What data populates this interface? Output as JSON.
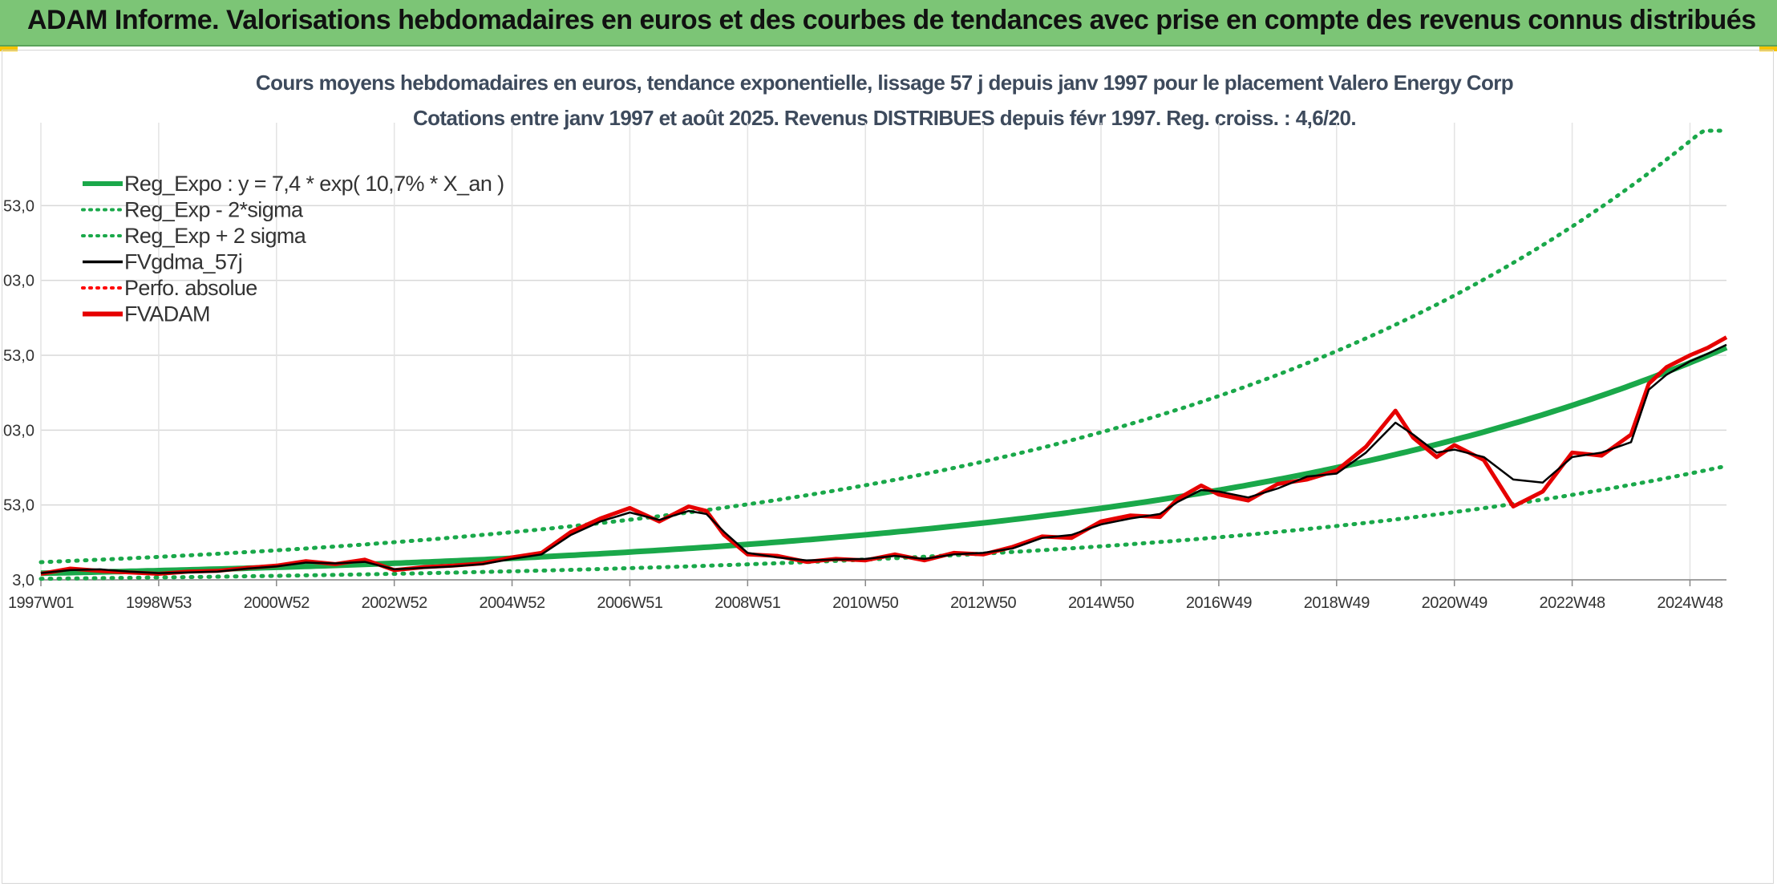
{
  "banner": {
    "title": "ADAM Informe. Valorisations hebdomadaires en euros et des courbes de tendances avec prise en compte des revenus connus distribués",
    "color": "#7cc576"
  },
  "chart_data": {
    "type": "line",
    "title": "Cours moyens hebdomadaires en euros, tendance exponentielle, lissage 57 j depuis janv 1997 pour le placement Valero Energy Corp",
    "subtitle": "Cotations entre janv 1997 et août 2025. Revenus DISTRIBUES depuis févr 1997. Reg. croiss. : 4,6/20.",
    "xlabel": "",
    "ylabel": "",
    "xlim": [
      1997.0,
      2025.62
    ],
    "ylim": [
      3.0,
      303.0
    ],
    "y_ticks": [
      "3,0",
      "53,0",
      "103,0",
      "153,0",
      "203,0",
      "253,0"
    ],
    "x_ticks": [
      {
        "label": "1997W01",
        "year": 1997.0
      },
      {
        "label": "1998W53",
        "year": 1999.0
      },
      {
        "label": "2000W52",
        "year": 2001.0
      },
      {
        "label": "2002W52",
        "year": 2003.0
      },
      {
        "label": "2004W52",
        "year": 2005.0
      },
      {
        "label": "2006W51",
        "year": 2007.0
      },
      {
        "label": "2008W51",
        "year": 2009.0
      },
      {
        "label": "2010W50",
        "year": 2011.0
      },
      {
        "label": "2012W50",
        "year": 2013.0
      },
      {
        "label": "2014W50",
        "year": 2015.0
      },
      {
        "label": "2016W49",
        "year": 2017.0
      },
      {
        "label": "2018W49",
        "year": 2019.0
      },
      {
        "label": "2020W49",
        "year": 2021.0
      },
      {
        "label": "2022W48",
        "year": 2023.0
      },
      {
        "label": "2024W48",
        "year": 2025.0
      }
    ],
    "grid": true,
    "legend_position": "top-left",
    "regression": {
      "a": 7.4,
      "rate_percent": 10.7
    },
    "series": [
      {
        "name": "Reg_Expo : y = 7,4 * exp( 10,7% *  X_an )",
        "style": "solid-thick",
        "color": "#1aa84a"
      },
      {
        "name": "Reg_Exp - 2*sigma",
        "style": "dotted",
        "color": "#1aa84a"
      },
      {
        "name": "Reg_Exp + 2 sigma",
        "style": "dotted",
        "color": "#1aa84a"
      },
      {
        "name": "FVgdma_57j",
        "style": "solid",
        "color": "#000000",
        "points": [
          [
            1997.0,
            7.5
          ],
          [
            1997.5,
            9.5
          ],
          [
            1998.0,
            10.0
          ],
          [
            1998.5,
            8.5
          ],
          [
            1999.0,
            7.5
          ],
          [
            1999.5,
            8.0
          ],
          [
            2000.0,
            8.5
          ],
          [
            2000.5,
            10.5
          ],
          [
            2001.0,
            12.0
          ],
          [
            2001.5,
            14.5
          ],
          [
            2002.0,
            14.0
          ],
          [
            2002.5,
            15.0
          ],
          [
            2003.0,
            10.0
          ],
          [
            2003.5,
            11.0
          ],
          [
            2004.0,
            12.0
          ],
          [
            2004.5,
            13.5
          ],
          [
            2005.0,
            17.0
          ],
          [
            2005.5,
            20.0
          ],
          [
            2006.0,
            33.0
          ],
          [
            2006.5,
            42.0
          ],
          [
            2007.0,
            48.0
          ],
          [
            2007.5,
            43.0
          ],
          [
            2008.0,
            49.0
          ],
          [
            2008.3,
            47.0
          ],
          [
            2008.6,
            35.0
          ],
          [
            2009.0,
            21.0
          ],
          [
            2009.5,
            18.0
          ],
          [
            2010.0,
            16.0
          ],
          [
            2010.5,
            16.5
          ],
          [
            2011.0,
            17.0
          ],
          [
            2011.5,
            19.0
          ],
          [
            2012.0,
            17.0
          ],
          [
            2012.5,
            20.0
          ],
          [
            2013.0,
            21.0
          ],
          [
            2013.5,
            24.0
          ],
          [
            2014.0,
            31.0
          ],
          [
            2014.5,
            33.0
          ],
          [
            2015.0,
            40.0
          ],
          [
            2015.5,
            44.0
          ],
          [
            2016.0,
            47.0
          ],
          [
            2016.3,
            55.0
          ],
          [
            2016.7,
            63.0
          ],
          [
            2017.0,
            62.0
          ],
          [
            2017.5,
            58.0
          ],
          [
            2018.0,
            64.0
          ],
          [
            2018.5,
            72.0
          ],
          [
            2019.0,
            74.0
          ],
          [
            2019.5,
            88.0
          ],
          [
            2020.0,
            108.0
          ],
          [
            2020.3,
            100.0
          ],
          [
            2020.7,
            88.0
          ],
          [
            2021.0,
            90.0
          ],
          [
            2021.5,
            85.0
          ],
          [
            2022.0,
            70.0
          ],
          [
            2022.5,
            68.0
          ],
          [
            2023.0,
            85.0
          ],
          [
            2023.5,
            88.0
          ],
          [
            2024.0,
            95.0
          ],
          [
            2024.3,
            130.0
          ],
          [
            2024.6,
            140.0
          ],
          [
            2025.0,
            149.0
          ],
          [
            2025.3,
            154.0
          ],
          [
            2025.62,
            160.0
          ]
        ]
      },
      {
        "name": "Perfo. absolue",
        "style": "dotted",
        "color": "#ff0000"
      },
      {
        "name": "FVADAM",
        "style": "solid-thick",
        "color": "#e60000",
        "points": [
          [
            1997.0,
            7.0
          ],
          [
            1997.5,
            10.5
          ],
          [
            1998.0,
            9.0
          ],
          [
            1998.5,
            8.0
          ],
          [
            1999.0,
            7.0
          ],
          [
            1999.5,
            8.5
          ],
          [
            2000.0,
            9.0
          ],
          [
            2000.5,
            11.0
          ],
          [
            2001.0,
            12.5
          ],
          [
            2001.5,
            15.5
          ],
          [
            2002.0,
            13.5
          ],
          [
            2002.5,
            16.5
          ],
          [
            2003.0,
            9.5
          ],
          [
            2003.5,
            11.5
          ],
          [
            2004.0,
            12.5
          ],
          [
            2004.5,
            14.0
          ],
          [
            2005.0,
            18.0
          ],
          [
            2005.5,
            21.0
          ],
          [
            2006.0,
            35.0
          ],
          [
            2006.5,
            44.0
          ],
          [
            2007.0,
            51.0
          ],
          [
            2007.5,
            42.0
          ],
          [
            2008.0,
            52.0
          ],
          [
            2008.3,
            49.0
          ],
          [
            2008.6,
            33.0
          ],
          [
            2009.0,
            20.0
          ],
          [
            2009.5,
            19.0
          ],
          [
            2010.0,
            15.0
          ],
          [
            2010.5,
            17.0
          ],
          [
            2011.0,
            16.0
          ],
          [
            2011.5,
            20.0
          ],
          [
            2012.0,
            16.0
          ],
          [
            2012.5,
            21.0
          ],
          [
            2013.0,
            20.0
          ],
          [
            2013.5,
            25.0
          ],
          [
            2014.0,
            32.0
          ],
          [
            2014.5,
            31.0
          ],
          [
            2015.0,
            42.0
          ],
          [
            2015.5,
            46.0
          ],
          [
            2016.0,
            45.0
          ],
          [
            2016.3,
            57.0
          ],
          [
            2016.7,
            66.0
          ],
          [
            2017.0,
            60.0
          ],
          [
            2017.5,
            56.0
          ],
          [
            2018.0,
            67.0
          ],
          [
            2018.5,
            70.0
          ],
          [
            2019.0,
            76.0
          ],
          [
            2019.5,
            92.0
          ],
          [
            2020.0,
            116.0
          ],
          [
            2020.3,
            98.0
          ],
          [
            2020.7,
            85.0
          ],
          [
            2021.0,
            93.0
          ],
          [
            2021.5,
            83.0
          ],
          [
            2022.0,
            52.0
          ],
          [
            2022.5,
            62.0
          ],
          [
            2023.0,
            88.0
          ],
          [
            2023.5,
            86.0
          ],
          [
            2024.0,
            100.0
          ],
          [
            2024.3,
            134.0
          ],
          [
            2024.6,
            145.0
          ],
          [
            2025.0,
            153.0
          ],
          [
            2025.3,
            158.0
          ],
          [
            2025.62,
            165.0
          ]
        ]
      }
    ]
  }
}
